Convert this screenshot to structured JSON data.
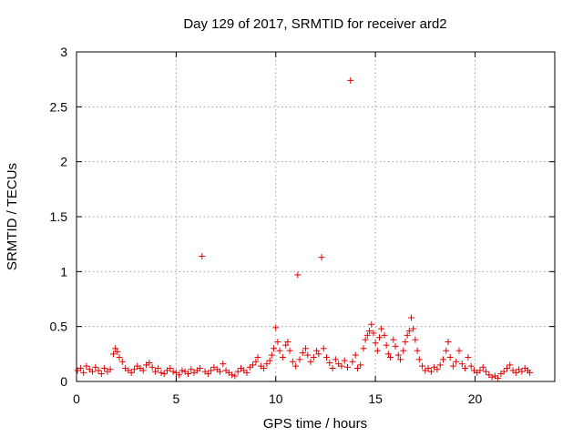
{
  "chart_data": {
    "type": "scatter",
    "title": "Day 129 of 2017, SRMTID for receiver ard2",
    "xlabel": "GPS time / hours",
    "ylabel": "SRMTID / TECUs",
    "xlim": [
      0,
      24
    ],
    "ylim": [
      0,
      3
    ],
    "xticks": [
      0,
      5,
      10,
      15,
      20
    ],
    "xtick_labels": [
      "0",
      "5",
      "10",
      "15",
      "20"
    ],
    "yticks": [
      0,
      0.5,
      1,
      1.5,
      2,
      2.5,
      3
    ],
    "ytick_labels": [
      "0",
      "0.5",
      "1",
      "1.5",
      "2",
      "2.5",
      "3"
    ],
    "grid": true,
    "marker": "+",
    "series": [
      {
        "name": "SRMTID",
        "color": "#e00000",
        "points": [
          [
            0.05,
            0.1
          ],
          [
            0.2,
            0.12
          ],
          [
            0.35,
            0.08
          ],
          [
            0.5,
            0.14
          ],
          [
            0.65,
            0.11
          ],
          [
            0.8,
            0.09
          ],
          [
            0.95,
            0.13
          ],
          [
            1.1,
            0.1
          ],
          [
            1.25,
            0.07
          ],
          [
            1.4,
            0.12
          ],
          [
            1.55,
            0.09
          ],
          [
            1.7,
            0.11
          ],
          [
            1.85,
            0.25
          ],
          [
            1.95,
            0.3
          ],
          [
            2.05,
            0.27
          ],
          [
            2.15,
            0.22
          ],
          [
            2.3,
            0.18
          ],
          [
            2.45,
            0.12
          ],
          [
            2.6,
            0.1
          ],
          [
            2.75,
            0.08
          ],
          [
            2.9,
            0.11
          ],
          [
            3.05,
            0.14
          ],
          [
            3.2,
            0.12
          ],
          [
            3.35,
            0.1
          ],
          [
            3.5,
            0.15
          ],
          [
            3.65,
            0.17
          ],
          [
            3.8,
            0.13
          ],
          [
            3.95,
            0.09
          ],
          [
            4.1,
            0.12
          ],
          [
            4.25,
            0.08
          ],
          [
            4.4,
            0.07
          ],
          [
            4.55,
            0.1
          ],
          [
            4.7,
            0.12
          ],
          [
            4.85,
            0.09
          ],
          [
            5.0,
            0.08
          ],
          [
            5.15,
            0.06
          ],
          [
            5.3,
            0.1
          ],
          [
            5.45,
            0.09
          ],
          [
            5.6,
            0.07
          ],
          [
            5.75,
            0.11
          ],
          [
            5.9,
            0.08
          ],
          [
            6.05,
            0.1
          ],
          [
            6.2,
            0.12
          ],
          [
            6.3,
            1.14
          ],
          [
            6.45,
            0.09
          ],
          [
            6.6,
            0.07
          ],
          [
            6.75,
            0.1
          ],
          [
            6.9,
            0.13
          ],
          [
            7.05,
            0.11
          ],
          [
            7.2,
            0.09
          ],
          [
            7.35,
            0.16
          ],
          [
            7.5,
            0.1
          ],
          [
            7.65,
            0.08
          ],
          [
            7.8,
            0.06
          ],
          [
            7.95,
            0.05
          ],
          [
            8.1,
            0.09
          ],
          [
            8.25,
            0.12
          ],
          [
            8.4,
            0.1
          ],
          [
            8.55,
            0.08
          ],
          [
            8.7,
            0.13
          ],
          [
            8.85,
            0.15
          ],
          [
            9.0,
            0.18
          ],
          [
            9.1,
            0.22
          ],
          [
            9.25,
            0.14
          ],
          [
            9.4,
            0.12
          ],
          [
            9.55,
            0.16
          ],
          [
            9.7,
            0.19
          ],
          [
            9.8,
            0.24
          ],
          [
            9.9,
            0.3
          ],
          [
            10.0,
            0.49
          ],
          [
            10.1,
            0.36
          ],
          [
            10.2,
            0.28
          ],
          [
            10.35,
            0.22
          ],
          [
            10.5,
            0.33
          ],
          [
            10.6,
            0.36
          ],
          [
            10.7,
            0.28
          ],
          [
            10.85,
            0.18
          ],
          [
            11.0,
            0.14
          ],
          [
            11.1,
            0.97
          ],
          [
            11.2,
            0.2
          ],
          [
            11.35,
            0.26
          ],
          [
            11.5,
            0.3
          ],
          [
            11.6,
            0.24
          ],
          [
            11.75,
            0.18
          ],
          [
            11.9,
            0.22
          ],
          [
            12.05,
            0.28
          ],
          [
            12.15,
            0.25
          ],
          [
            12.3,
            1.13
          ],
          [
            12.4,
            0.3
          ],
          [
            12.55,
            0.22
          ],
          [
            12.7,
            0.17
          ],
          [
            12.85,
            0.12
          ],
          [
            13.0,
            0.2
          ],
          [
            13.15,
            0.16
          ],
          [
            13.3,
            0.14
          ],
          [
            13.45,
            0.19
          ],
          [
            13.6,
            0.13
          ],
          [
            13.75,
            2.74
          ],
          [
            13.85,
            0.18
          ],
          [
            14.0,
            0.24
          ],
          [
            14.1,
            0.12
          ],
          [
            14.25,
            0.15
          ],
          [
            14.4,
            0.3
          ],
          [
            14.5,
            0.38
          ],
          [
            14.6,
            0.42
          ],
          [
            14.7,
            0.46
          ],
          [
            14.8,
            0.52
          ],
          [
            14.9,
            0.44
          ],
          [
            15.0,
            0.35
          ],
          [
            15.1,
            0.28
          ],
          [
            15.2,
            0.4
          ],
          [
            15.3,
            0.48
          ],
          [
            15.45,
            0.42
          ],
          [
            15.55,
            0.33
          ],
          [
            15.65,
            0.25
          ],
          [
            15.75,
            0.22
          ],
          [
            15.9,
            0.38
          ],
          [
            16.0,
            0.32
          ],
          [
            16.15,
            0.24
          ],
          [
            16.25,
            0.2
          ],
          [
            16.4,
            0.28
          ],
          [
            16.5,
            0.36
          ],
          [
            16.6,
            0.42
          ],
          [
            16.7,
            0.46
          ],
          [
            16.8,
            0.58
          ],
          [
            16.9,
            0.48
          ],
          [
            17.0,
            0.38
          ],
          [
            17.1,
            0.28
          ],
          [
            17.2,
            0.2
          ],
          [
            17.35,
            0.14
          ],
          [
            17.5,
            0.1
          ],
          [
            17.65,
            0.12
          ],
          [
            17.8,
            0.09
          ],
          [
            17.95,
            0.13
          ],
          [
            18.1,
            0.11
          ],
          [
            18.25,
            0.15
          ],
          [
            18.4,
            0.2
          ],
          [
            18.55,
            0.28
          ],
          [
            18.65,
            0.36
          ],
          [
            18.75,
            0.22
          ],
          [
            18.9,
            0.14
          ],
          [
            19.05,
            0.18
          ],
          [
            19.2,
            0.28
          ],
          [
            19.35,
            0.16
          ],
          [
            19.5,
            0.12
          ],
          [
            19.65,
            0.22
          ],
          [
            19.8,
            0.14
          ],
          [
            19.95,
            0.1
          ],
          [
            20.1,
            0.08
          ],
          [
            20.25,
            0.1
          ],
          [
            20.4,
            0.13
          ],
          [
            20.55,
            0.09
          ],
          [
            20.7,
            0.06
          ],
          [
            20.85,
            0.04
          ],
          [
            21.0,
            0.05
          ],
          [
            21.15,
            0.03
          ],
          [
            21.3,
            0.07
          ],
          [
            21.45,
            0.09
          ],
          [
            21.6,
            0.12
          ],
          [
            21.75,
            0.15
          ],
          [
            21.9,
            0.1
          ],
          [
            22.05,
            0.08
          ],
          [
            22.2,
            0.11
          ],
          [
            22.35,
            0.09
          ],
          [
            22.5,
            0.12
          ],
          [
            22.65,
            0.1
          ],
          [
            22.75,
            0.08
          ]
        ]
      }
    ]
  }
}
